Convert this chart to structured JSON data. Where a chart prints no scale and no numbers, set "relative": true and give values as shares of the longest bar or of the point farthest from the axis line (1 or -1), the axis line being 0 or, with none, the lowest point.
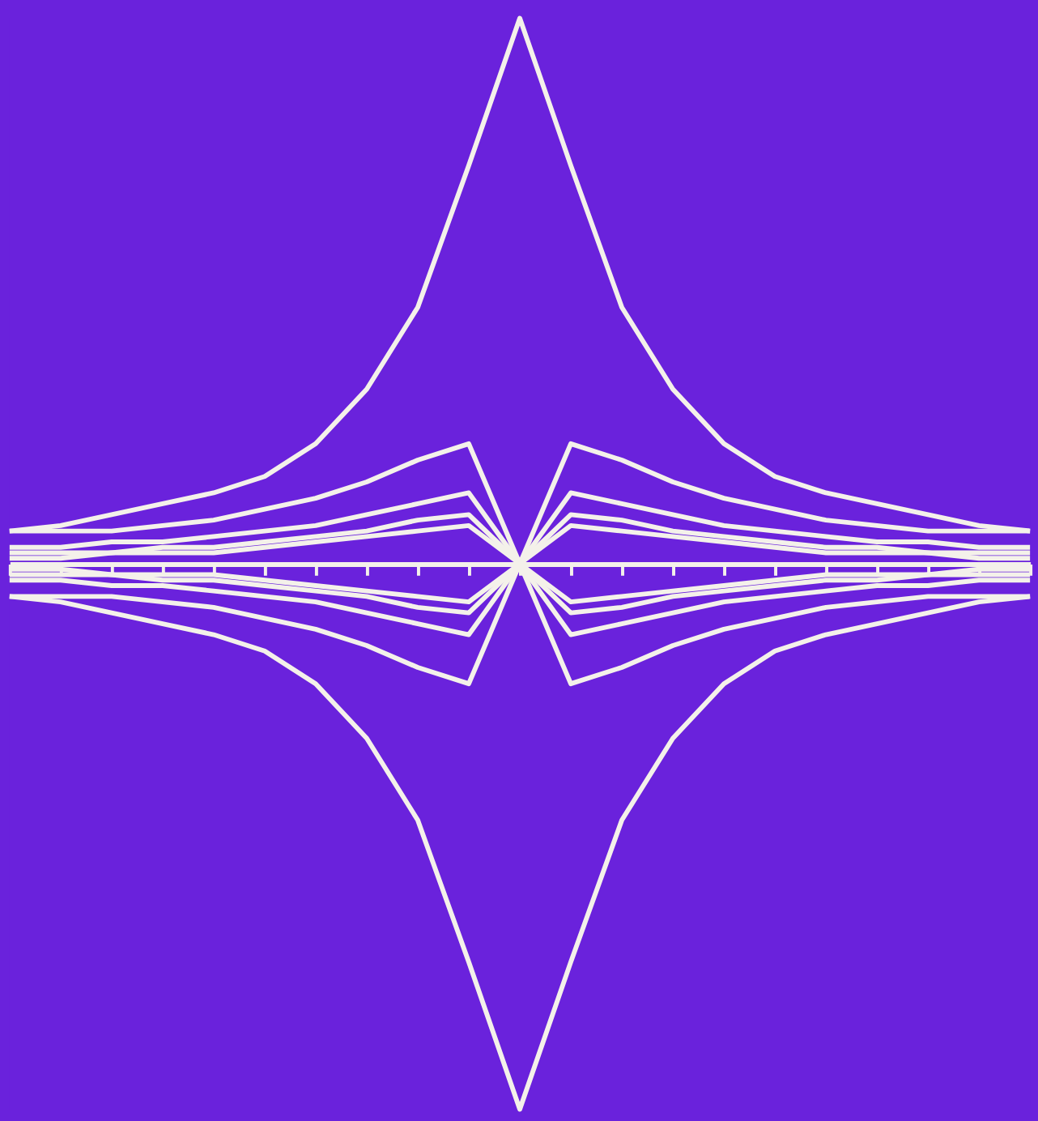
{
  "chart_data": {
    "type": "line",
    "relative": true,
    "grid": false,
    "legend": false,
    "categories": [
      null,
      null,
      null,
      null,
      null,
      null,
      null,
      null,
      null,
      null,
      null,
      null,
      null,
      null,
      null,
      null,
      null,
      null,
      null,
      null,
      null
    ],
    "series": [
      {
        "color": "#f4f1ea",
        "values": [
          0.06,
          0.07,
          0.09,
          0.11,
          0.13,
          0.16,
          0.22,
          0.32,
          0.47,
          0.73,
          1,
          0.73,
          0.47,
          0.32,
          0.22,
          0.16,
          0.13,
          0.11,
          0.09,
          0.07,
          0.06
        ]
      },
      {
        "color": "#f4f1ea",
        "values": [
          -0.06,
          -0.07,
          -0.09,
          -0.11,
          -0.13,
          -0.16,
          -0.22,
          -0.32,
          -0.47,
          -0.73,
          -1,
          -0.73,
          -0.47,
          -0.32,
          -0.22,
          -0.16,
          -0.13,
          -0.11,
          -0.09,
          -0.07,
          -0.06
        ]
      },
      {
        "color": "#f4f1ea",
        "values": [
          0.06,
          0.06,
          0.06,
          0.07,
          0.08,
          0.1,
          0.12,
          0.15,
          0.19,
          0.22,
          0,
          0.22,
          0.19,
          0.15,
          0.12,
          0.1,
          0.08,
          0.07,
          0.06,
          0.06,
          0.06
        ]
      },
      {
        "color": "#f4f1ea",
        "values": [
          -0.06,
          -0.06,
          -0.06,
          -0.07,
          -0.08,
          -0.1,
          -0.12,
          -0.15,
          -0.19,
          -0.22,
          0,
          -0.22,
          -0.19,
          -0.15,
          -0.12,
          -0.1,
          -0.08,
          -0.07,
          -0.06,
          -0.06,
          -0.06
        ]
      },
      {
        "color": "#f4f1ea",
        "values": [
          0.03,
          0.03,
          0.04,
          0.04,
          0.05,
          0.06,
          0.07,
          0.09,
          0.11,
          0.13,
          0,
          0.13,
          0.11,
          0.09,
          0.07,
          0.06,
          0.05,
          0.04,
          0.04,
          0.03,
          0.03
        ]
      },
      {
        "color": "#f4f1ea",
        "values": [
          -0.03,
          -0.03,
          -0.04,
          -0.04,
          -0.05,
          -0.06,
          -0.07,
          -0.09,
          -0.11,
          -0.13,
          0,
          -0.13,
          -0.11,
          -0.09,
          -0.07,
          -0.06,
          -0.05,
          -0.04,
          -0.04,
          -0.03,
          -0.03
        ]
      },
      {
        "color": "#f4f1ea",
        "values": [
          0.02,
          0.02,
          0.02,
          0.03,
          0.03,
          0.04,
          0.05,
          0.06,
          0.08,
          0.09,
          0,
          0.09,
          0.08,
          0.06,
          0.05,
          0.04,
          0.03,
          0.03,
          0.02,
          0.02,
          0.02
        ]
      },
      {
        "color": "#f4f1ea",
        "values": [
          -0.02,
          -0.02,
          -0.02,
          -0.03,
          -0.03,
          -0.04,
          -0.05,
          -0.06,
          -0.08,
          -0.09,
          0,
          -0.09,
          -0.08,
          -0.06,
          -0.05,
          -0.04,
          -0.03,
          -0.03,
          -0.02,
          -0.02,
          -0.02
        ]
      },
      {
        "color": "#f4f1ea",
        "values": [
          0.01,
          0.01,
          0.02,
          0.02,
          0.02,
          0.03,
          0.04,
          0.05,
          0.06,
          0.07,
          0,
          0.07,
          0.06,
          0.05,
          0.04,
          0.03,
          0.02,
          0.02,
          0.02,
          0.01,
          0.01
        ]
      },
      {
        "color": "#f4f1ea",
        "values": [
          -0.01,
          -0.01,
          -0.02,
          -0.02,
          -0.02,
          -0.03,
          -0.04,
          -0.05,
          -0.06,
          -0.07,
          0,
          -0.07,
          -0.06,
          -0.05,
          -0.04,
          -0.03,
          -0.02,
          -0.02,
          -0.02,
          -0.01,
          -0.01
        ]
      }
    ]
  }
}
